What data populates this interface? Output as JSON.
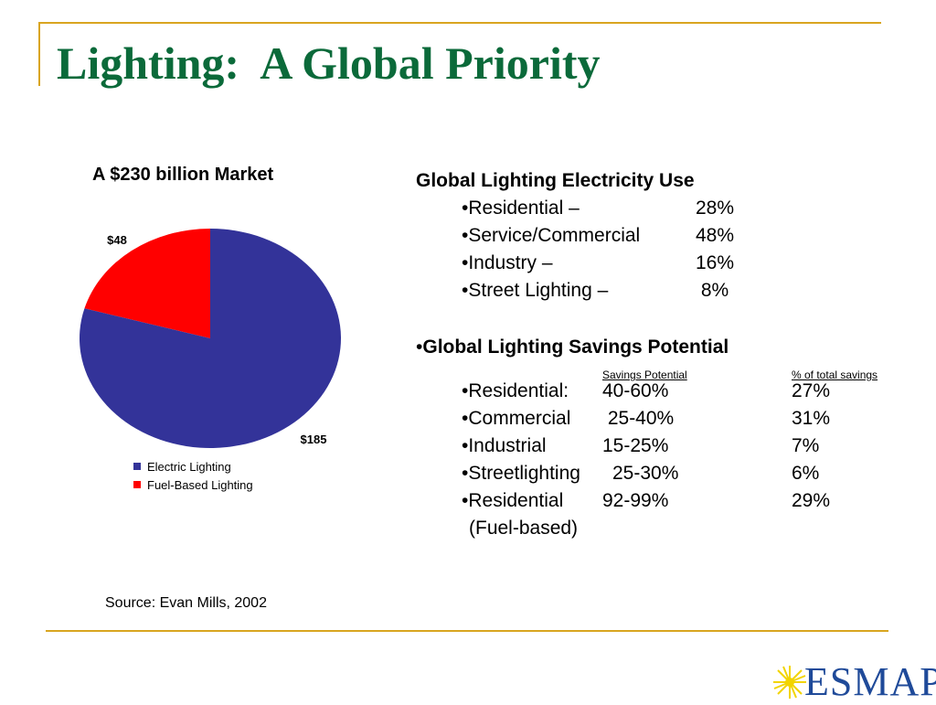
{
  "slide": {
    "title": "Lighting:  A Global Priority",
    "source": "Source: Evan Mills, 2002",
    "logo_text": "ESMAP"
  },
  "chart_data": {
    "type": "pie",
    "title": "A $230 billion Market",
    "legend_position": "bottom",
    "slices": [
      {
        "name": "Electric Lighting",
        "value": 185,
        "label": "$185",
        "color": "#333399"
      },
      {
        "name": "Fuel-Based Lighting",
        "value": 48,
        "label": "$48",
        "color": "#ff0000"
      }
    ]
  },
  "use": {
    "heading": "Global Lighting Electricity Use",
    "items": [
      {
        "label": "•Residential –",
        "value": "28%"
      },
      {
        "label": "•Service/Commercial",
        "value": "48%"
      },
      {
        "label": "•Industry –",
        "value": "16%"
      },
      {
        "label": "•Street Lighting –",
        "value": " 8%"
      }
    ]
  },
  "savings": {
    "bullet": "•",
    "heading": "Global Lighting Savings Potential",
    "col_potential": "Savings Potential",
    "col_share": "% of total savings",
    "rows": [
      {
        "label": "•Residential:",
        "range": "40-60%",
        "share": "27%"
      },
      {
        "label": "•Commercial",
        "range": " 25-40%",
        "share": "31%"
      },
      {
        "label": "•Industrial",
        "range": "15-25%",
        "share": "7%"
      },
      {
        "label": "•Streetlighting",
        "range": "25-30%",
        "share": "6%"
      },
      {
        "label": "•Residential",
        "range": "92-99%",
        "share": "29%"
      }
    ],
    "note": "(Fuel-based)"
  }
}
